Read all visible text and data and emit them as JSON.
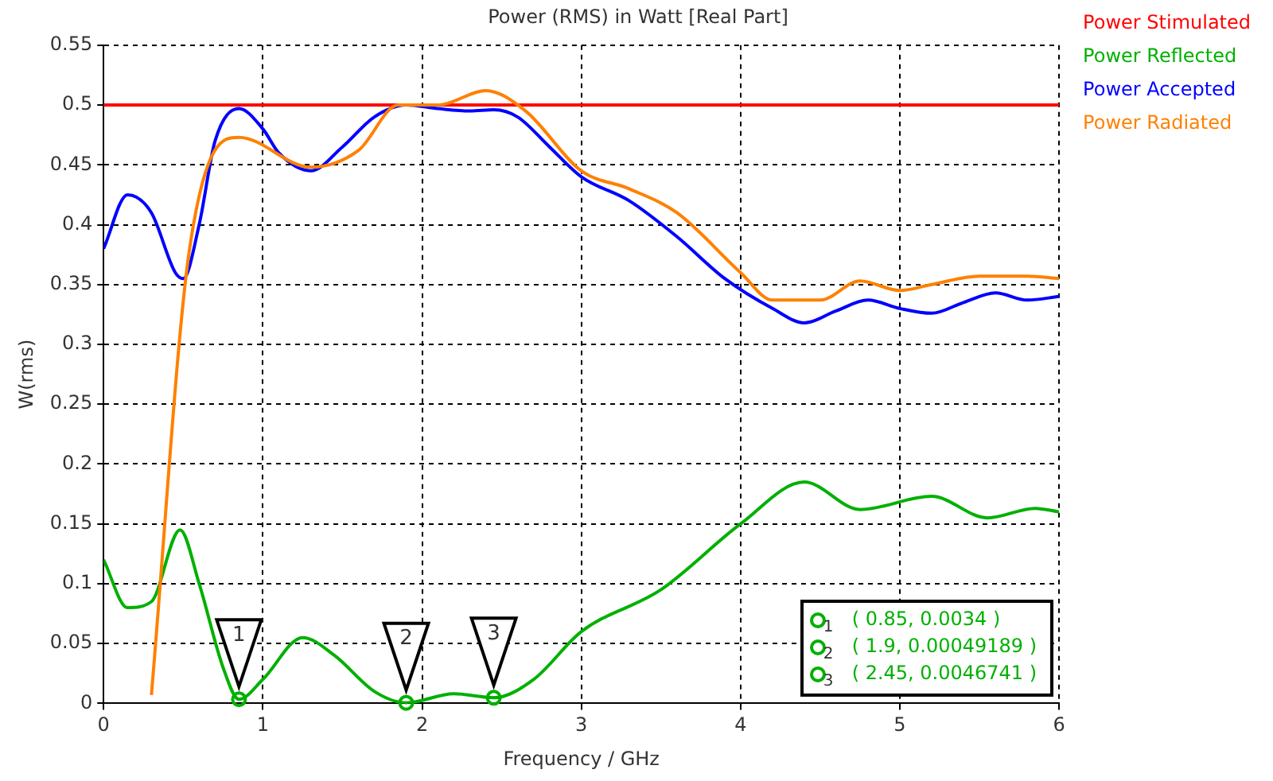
{
  "chart_data": {
    "type": "line",
    "title": "Power (RMS) in Watt [Real Part]",
    "xlabel": "Frequency / GHz",
    "ylabel": "W(rms)",
    "xlim": [
      0,
      6
    ],
    "xticks": [
      0,
      1,
      2,
      3,
      4,
      5,
      6
    ],
    "ylim": [
      0,
      0.55
    ],
    "yticks": [
      0,
      0.05,
      0.1,
      0.15,
      0.2,
      0.25,
      0.3,
      0.35,
      0.4,
      0.45,
      0.5,
      0.55
    ],
    "grid": true,
    "legend": "top right",
    "marker": "none",
    "line_style": "solid",
    "series": [
      {
        "name": "Power Stimulated",
        "color": "#ff0000",
        "x": [
          0,
          6
        ],
        "values": [
          0.5,
          0.5
        ]
      },
      {
        "name": "Power Reflected",
        "color": "#00b000",
        "x": [
          0,
          0.15,
          0.3,
          0.48,
          0.6,
          0.75,
          0.85,
          1.0,
          1.25,
          1.45,
          1.7,
          1.9,
          2.2,
          2.45,
          2.7,
          3.0,
          3.5,
          4.0,
          4.4,
          4.75,
          5.2,
          5.55,
          5.85,
          6.0
        ],
        "values": [
          0.12,
          0.08,
          0.085,
          0.145,
          0.1,
          0.03,
          0.0034,
          0.02,
          0.055,
          0.04,
          0.01,
          0.0005,
          0.008,
          0.0047,
          0.02,
          0.06,
          0.095,
          0.15,
          0.185,
          0.162,
          0.173,
          0.155,
          0.163,
          0.16
        ]
      },
      {
        "name": "Power Accepted",
        "color": "#0000ff",
        "x": [
          0,
          0.15,
          0.3,
          0.45,
          0.5,
          0.6,
          0.7,
          0.85,
          1.0,
          1.1,
          1.3,
          1.5,
          1.7,
          1.9,
          2.1,
          2.3,
          2.45,
          2.6,
          2.8,
          3.0,
          3.3,
          3.6,
          3.9,
          4.2,
          4.4,
          4.6,
          4.8,
          5.0,
          5.2,
          5.4,
          5.6,
          5.8,
          6.0
        ],
        "values": [
          0.38,
          0.425,
          0.41,
          0.36,
          0.355,
          0.4,
          0.47,
          0.497,
          0.48,
          0.46,
          0.445,
          0.465,
          0.49,
          0.5,
          0.497,
          0.495,
          0.496,
          0.49,
          0.465,
          0.44,
          0.42,
          0.39,
          0.355,
          0.33,
          0.318,
          0.328,
          0.337,
          0.33,
          0.326,
          0.335,
          0.343,
          0.337,
          0.34
        ]
      },
      {
        "name": "Power Radiated",
        "color": "#ff8000",
        "x": [
          0.3,
          0.54,
          0.85,
          1.3,
          1.6,
          1.85,
          2.1,
          2.4,
          2.65,
          3.0,
          3.3,
          3.6,
          4.0,
          4.2,
          4.5,
          4.75,
          5.0,
          5.2,
          5.5,
          5.8,
          6.0
        ],
        "values": [
          0.007,
          0.38,
          0.473,
          0.448,
          0.462,
          0.5,
          0.5,
          0.512,
          0.495,
          0.445,
          0.43,
          0.41,
          0.36,
          0.337,
          0.337,
          0.353,
          0.345,
          0.35,
          0.357,
          0.357,
          0.355
        ]
      }
    ],
    "annotations": [
      {
        "text": "1",
        "x": 0.85,
        "y": 0.0034
      },
      {
        "text": "2",
        "x": 1.9,
        "y": 0.0005
      },
      {
        "text": "3",
        "x": 2.45,
        "y": 0.0047
      },
      "( 0.85, 0.0034 )",
      "( 1.9, 0.00049189 )",
      "( 2.45, 0.0046741 )"
    ]
  }
}
